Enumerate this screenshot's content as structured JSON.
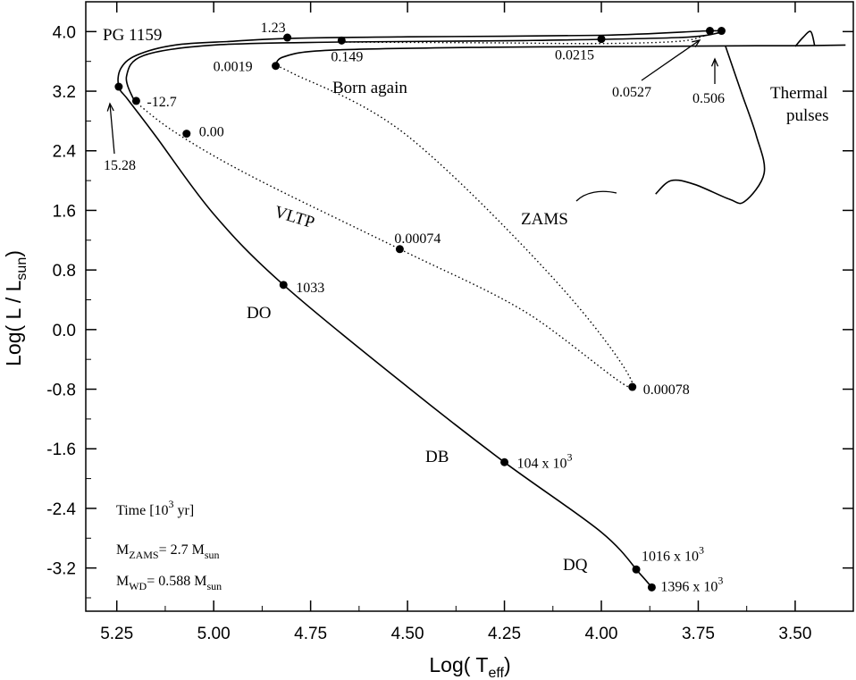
{
  "chart_data": {
    "type": "line",
    "title": "",
    "xlabel": "Log( T",
    "xlabel_sub": "eff",
    "xlabel_end": ")",
    "ylabel": "Log( L / L",
    "ylabel_sub": "sun",
    "ylabel_end": ")",
    "xlim": [
      5.33,
      3.35
    ],
    "ylim": [
      -3.78,
      4.4
    ],
    "x_reversed": true,
    "x_ticks": [
      "5.25",
      "5.00",
      "4.75",
      "4.50",
      "4.25",
      "4.00",
      "3.75",
      "3.50"
    ],
    "x_tick_values": [
      5.25,
      5.0,
      4.75,
      4.5,
      4.25,
      4.0,
      3.75,
      3.5
    ],
    "y_ticks": [
      "4.0",
      "3.2",
      "2.4",
      "1.6",
      "0.8",
      "0.0",
      "-0.8",
      "-1.6",
      "-2.4",
      "-3.2"
    ],
    "y_tick_values": [
      4.0,
      3.2,
      2.4,
      1.6,
      0.8,
      0.0,
      -0.8,
      -1.6,
      -2.4,
      -3.2
    ],
    "grid": false,
    "series": [
      {
        "style": "solid",
        "points": [
          [
            3.87,
            -3.46
          ],
          [
            3.9,
            -3.28
          ],
          [
            4.0,
            -2.72
          ],
          [
            4.25,
            -1.78
          ],
          [
            4.5,
            -0.77
          ],
          [
            4.82,
            0.6
          ],
          [
            5.0,
            1.55
          ],
          [
            5.15,
            2.6
          ],
          [
            5.22,
            3.08
          ],
          [
            5.245,
            3.26
          ],
          [
            5.24,
            3.5
          ],
          [
            5.2,
            3.68
          ],
          [
            5.1,
            3.82
          ],
          [
            4.95,
            3.87
          ],
          [
            4.8,
            3.91
          ],
          [
            4.5,
            3.93
          ],
          [
            4.0,
            3.95
          ],
          [
            3.72,
            4.01
          ],
          [
            3.69,
            3.99
          ]
        ]
      },
      {
        "style": "solid",
        "points": [
          [
            3.69,
            3.99
          ],
          [
            3.8,
            3.92
          ],
          [
            4.2,
            3.88
          ],
          [
            4.67,
            3.86
          ],
          [
            5.0,
            3.82
          ],
          [
            5.18,
            3.68
          ],
          [
            5.225,
            3.4
          ],
          [
            5.205,
            3.07
          ]
        ]
      },
      {
        "style": "solid",
        "points": [
          [
            4.84,
            3.52
          ],
          [
            4.82,
            3.66
          ],
          [
            4.7,
            3.75
          ],
          [
            4.3,
            3.79
          ],
          [
            3.9,
            3.8
          ],
          [
            3.6,
            3.81
          ],
          [
            3.5,
            3.81
          ],
          [
            3.37,
            3.82
          ]
        ]
      },
      {
        "style": "solid",
        "points": [
          [
            3.68,
            3.81
          ],
          [
            3.64,
            3.2
          ],
          [
            3.6,
            2.6
          ],
          [
            3.58,
            2.1
          ],
          [
            3.63,
            1.72
          ],
          [
            3.67,
            1.75
          ],
          [
            3.76,
            1.95
          ],
          [
            3.82,
            2.0
          ],
          [
            3.86,
            1.82
          ]
        ]
      },
      {
        "style": "solid",
        "points": [
          [
            3.5,
            3.8
          ],
          [
            3.48,
            3.92
          ],
          [
            3.46,
            4.0
          ],
          [
            3.45,
            3.82
          ]
        ]
      },
      {
        "style": "dotted",
        "points": [
          [
            5.205,
            3.07
          ],
          [
            5.1,
            2.65
          ],
          [
            4.9,
            2.05
          ],
          [
            4.52,
            1.08
          ],
          [
            4.2,
            0.25
          ],
          [
            3.92,
            -0.78
          ],
          [
            4.1,
            0.55
          ],
          [
            4.5,
            2.6
          ],
          [
            4.8,
            3.45
          ],
          [
            4.84,
            3.52
          ]
        ]
      },
      {
        "style": "dotted",
        "points": [
          [
            4.67,
            3.86
          ],
          [
            4.3,
            3.85
          ],
          [
            4.0,
            3.84
          ],
          [
            3.8,
            3.87
          ],
          [
            3.73,
            3.95
          ]
        ]
      }
    ],
    "points": [
      {
        "x": 4.81,
        "y": 3.92,
        "label": "1.23"
      },
      {
        "x": 3.72,
        "y": 4.01,
        "label": ""
      },
      {
        "x": 3.69,
        "y": 4.01,
        "label": ""
      },
      {
        "x": 4.67,
        "y": 3.88,
        "label": "0.149"
      },
      {
        "x": 4.0,
        "y": 3.9,
        "label": "0.0215"
      },
      {
        "x": 4.84,
        "y": 3.54,
        "label": "0.0019"
      },
      {
        "x": 5.245,
        "y": 3.26,
        "label": ""
      },
      {
        "x": 5.2,
        "y": 3.07,
        "label": "-12.7"
      },
      {
        "x": 5.07,
        "y": 2.63,
        "label": "0.00"
      },
      {
        "x": 4.52,
        "y": 1.08,
        "label": "0.00074"
      },
      {
        "x": 4.82,
        "y": 0.6,
        "label": "1033"
      },
      {
        "x": 3.92,
        "y": -0.77,
        "label": "0.00078"
      },
      {
        "x": 4.25,
        "y": -1.78,
        "label": "104 x 10",
        "sup": "3"
      },
      {
        "x": 3.91,
        "y": -3.22,
        "label": "1016 x 10",
        "sup": "3"
      },
      {
        "x": 3.87,
        "y": -3.46,
        "label": "1396 x 10",
        "sup": "3"
      }
    ],
    "annotations": {
      "pg1159": "PG 1159",
      "born_again": "Born again",
      "thermal_1": "Thermal",
      "thermal_2": "pulses",
      "zams": "ZAMS",
      "vltp": "VLTP",
      "do": "DO",
      "db": "DB",
      "dq": "DQ",
      "label_1528": "15.28",
      "label_0527": "0.0527",
      "label_0506": "0.506"
    },
    "legend": {
      "time_main": "Time [10",
      "time_sup": "3",
      "time_end": " yr]",
      "mzams_main": "M",
      "mzams_sub": "ZAMS",
      "mzams_mid": "= 2.7 M",
      "mzams_sub2": "sun",
      "mwd_main": "M",
      "mwd_sub": "WD",
      "mwd_mid": "= 0.588 M",
      "mwd_sub2": "sun"
    }
  }
}
